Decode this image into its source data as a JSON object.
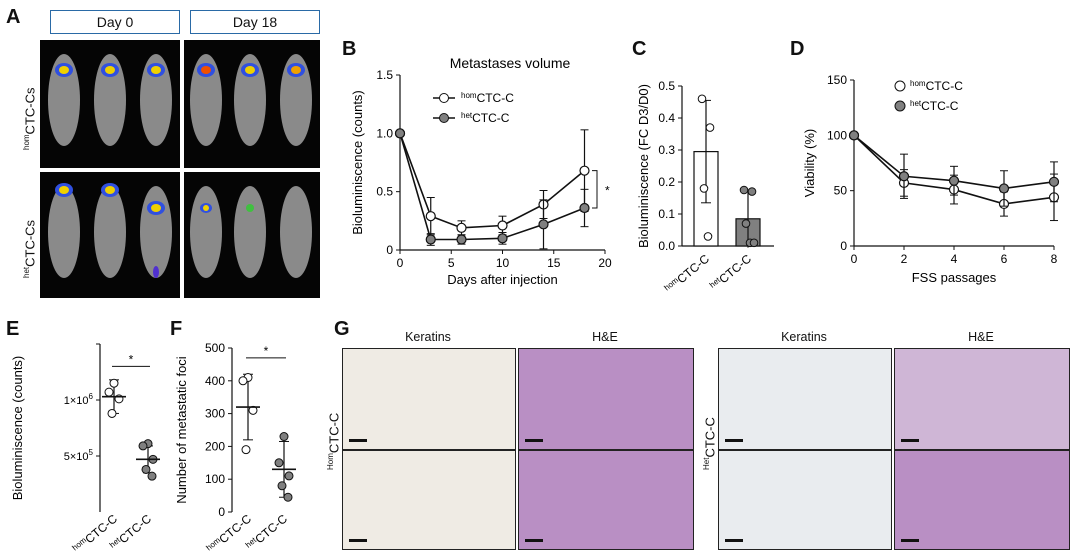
{
  "panel_labels": [
    "A",
    "B",
    "C",
    "D",
    "E",
    "F",
    "G"
  ],
  "panel_a": {
    "days": [
      "Day 0",
      "Day 18"
    ],
    "row_labels": [
      {
        "sup": "hom",
        "main": "CTC-Cs"
      },
      {
        "sup": "het",
        "main": "CTC-Cs"
      }
    ]
  },
  "panel_g": {
    "column_titles": [
      "Keratins",
      "H&E",
      "Keratins",
      "H&E"
    ],
    "row_labels": [
      {
        "sup": "Hom",
        "main": "CTC-C"
      },
      {
        "sup": "Het",
        "main": "CTC-C"
      }
    ]
  },
  "colors": {
    "hom_fill": "#ffffff",
    "het_fill": "#808080",
    "line": "#111111",
    "box_blue": "#2a6aa6"
  },
  "chart_data": [
    {
      "id": "B",
      "type": "line",
      "title": "Metastases volume",
      "xlabel": "Days after injection",
      "ylabel": "Bioluminiscence (counts)",
      "xlim": [
        0,
        20
      ],
      "ylim": [
        0,
        1.5
      ],
      "xticks": [
        "0",
        "5",
        "10",
        "15",
        "20"
      ],
      "yticks": [
        "0",
        "0.5",
        "1.0",
        "1.5"
      ],
      "legend": [
        {
          "sup": "hom",
          "main": "CTC-C"
        },
        {
          "sup": "het",
          "main": "CTC-C"
        }
      ],
      "series": [
        {
          "x": [
            0,
            3,
            6,
            10,
            14,
            18
          ],
          "y": [
            1.0,
            0.29,
            0.19,
            0.21,
            0.39,
            0.68
          ],
          "err": [
            0,
            0.16,
            0.06,
            0.08,
            0.12,
            0.35
          ]
        },
        {
          "x": [
            0,
            3,
            6,
            10,
            14,
            18
          ],
          "y": [
            1.0,
            0.09,
            0.09,
            0.1,
            0.22,
            0.36
          ],
          "err": [
            0,
            0.05,
            0.04,
            0.05,
            0.21,
            0.16
          ]
        }
      ],
      "annotation": "*"
    },
    {
      "id": "C",
      "type": "bar",
      "ylabel": "Bioluminiscence (FC D3/D0)",
      "ylim": [
        0,
        0.5
      ],
      "yticks": [
        "0.0",
        "0.1",
        "0.2",
        "0.3",
        "0.4",
        "0.5"
      ],
      "categories": [
        {
          "sup": "hom",
          "main": "CTC-C"
        },
        {
          "sup": "het",
          "main": "CTC-C"
        }
      ],
      "values": [
        0.295,
        0.085
      ],
      "err": [
        0.16,
        0.09
      ],
      "points": [
        [
          0.46,
          0.37,
          0.18,
          0.03
        ],
        [
          0.175,
          0.17,
          0.07,
          0.01,
          0.01
        ]
      ]
    },
    {
      "id": "D",
      "type": "line",
      "xlabel": "FSS passages",
      "ylabel": "Viability (%)",
      "xlim": [
        0,
        8
      ],
      "ylim": [
        0,
        150
      ],
      "xticks": [
        "0",
        "2",
        "4",
        "6",
        "8"
      ],
      "yticks": [
        "0",
        "50",
        "100",
        "150"
      ],
      "legend": [
        {
          "sup": "hom",
          "main": "CTC-C"
        },
        {
          "sup": "het",
          "main": "CTC-C"
        }
      ],
      "series": [
        {
          "x": [
            0,
            2,
            4,
            6,
            8
          ],
          "y": [
            100,
            57,
            51,
            38,
            44
          ],
          "err": [
            0,
            12,
            13,
            11,
            21
          ]
        },
        {
          "x": [
            0,
            2,
            4,
            6,
            8
          ],
          "y": [
            100,
            63,
            59,
            52,
            58
          ],
          "err": [
            0,
            20,
            13,
            16,
            18
          ]
        }
      ]
    },
    {
      "id": "E",
      "type": "scatter",
      "ylabel": "Bioluminiscence (counts)",
      "yticks": [
        {
          "base": "0",
          "exp": ""
        },
        {
          "base": "5×10",
          "exp": "5"
        },
        {
          "base": "1×10",
          "exp": "6"
        }
      ],
      "ytick_values": [
        0,
        500000,
        1000000
      ],
      "ylim": [
        0,
        1500000
      ],
      "categories": [
        {
          "sup": "hom",
          "main": "CTC-C"
        },
        {
          "sup": "het",
          "main": "CTC-C"
        }
      ],
      "mean": [
        1030000,
        470000
      ],
      "sd_err": [
        150000,
        120000
      ],
      "points": [
        [
          1150000,
          1070000,
          1010000,
          880000
        ],
        [
          610000,
          590000,
          470000,
          380000,
          320000
        ]
      ],
      "annotation": "*"
    },
    {
      "id": "F",
      "type": "scatter",
      "ylabel": "Number of metastatic foci",
      "ylim": [
        0,
        500
      ],
      "yticks": [
        "0",
        "100",
        "200",
        "300",
        "400",
        "500"
      ],
      "categories": [
        {
          "sup": "hom",
          "main": "CTC-C"
        },
        {
          "sup": "het",
          "main": "CTC-C"
        }
      ],
      "mean": [
        320,
        130
      ],
      "sd_err": [
        100,
        85
      ],
      "points": [
        [
          410,
          400,
          310,
          190
        ],
        [
          230,
          150,
          110,
          80,
          45
        ]
      ],
      "annotation": "*"
    }
  ]
}
